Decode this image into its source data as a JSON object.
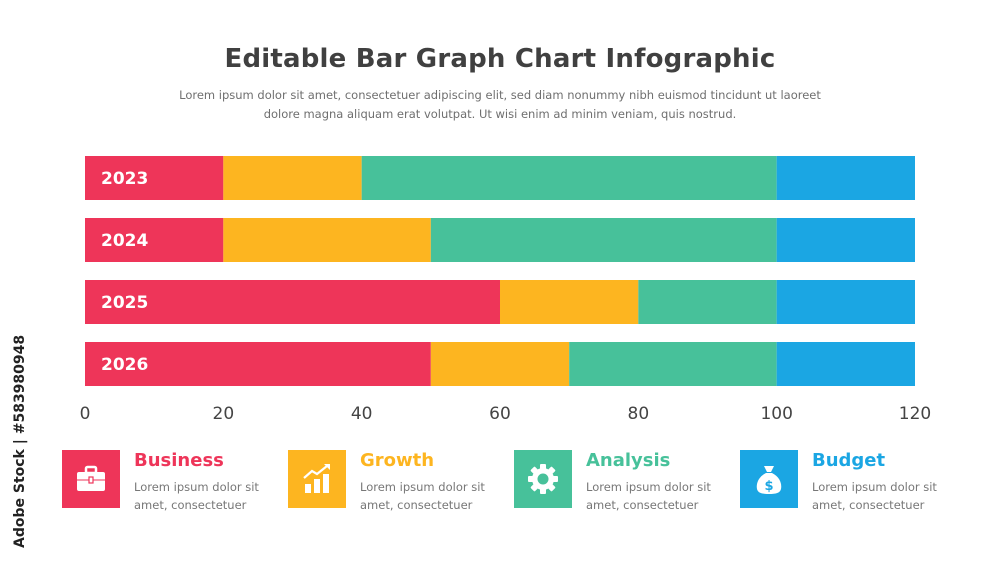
{
  "header": {
    "title": "Editable Bar Graph Chart Infographic",
    "subtitle_line1": "Lorem ipsum dolor sit amet, consectetuer adipiscing elit, sed diam nonummy nibh euismod tincidunt ut laoreet",
    "subtitle_line2": "dolore magna aliquam erat volutpat. Ut wisi enim ad minim veniam, quis nostrud."
  },
  "chart_data": {
    "type": "bar",
    "orientation": "horizontal",
    "stacked": true,
    "categories": [
      "2023",
      "2024",
      "2025",
      "2026"
    ],
    "series": [
      {
        "name": "Business",
        "color": "#EE3559",
        "values": [
          20,
          20,
          60,
          50
        ]
      },
      {
        "name": "Growth",
        "color": "#FDB520",
        "values": [
          20,
          30,
          20,
          20
        ]
      },
      {
        "name": "Analysis",
        "color": "#47C19A",
        "values": [
          60,
          50,
          20,
          30
        ]
      },
      {
        "name": "Budget",
        "color": "#1BA6E3",
        "values": [
          20,
          20,
          20,
          20
        ]
      }
    ],
    "xlim": [
      0,
      120
    ],
    "xticks": [
      "0",
      "20",
      "40",
      "60",
      "80",
      "100",
      "120"
    ],
    "grid": false
  },
  "legend": [
    {
      "label": "Business",
      "desc_line1": "Lorem ipsum dolor sit",
      "desc_line2": "amet, consectetuer",
      "icon": "briefcase-icon",
      "color": "#EE3559"
    },
    {
      "label": "Growth",
      "desc_line1": "Lorem ipsum dolor sit",
      "desc_line2": "amet, consectetuer",
      "icon": "growth-chart-icon",
      "color": "#FDB520"
    },
    {
      "label": "Analysis",
      "desc_line1": "Lorem ipsum dolor sit",
      "desc_line2": "amet, consectetuer",
      "icon": "gear-icon",
      "color": "#47C19A"
    },
    {
      "label": "Budget",
      "desc_line1": "Lorem ipsum dolor sit",
      "desc_line2": "amet, consectetuer",
      "icon": "money-bag-icon",
      "color": "#1BA6E3"
    }
  ],
  "watermark_side": "Adobe Stock | #583980948"
}
